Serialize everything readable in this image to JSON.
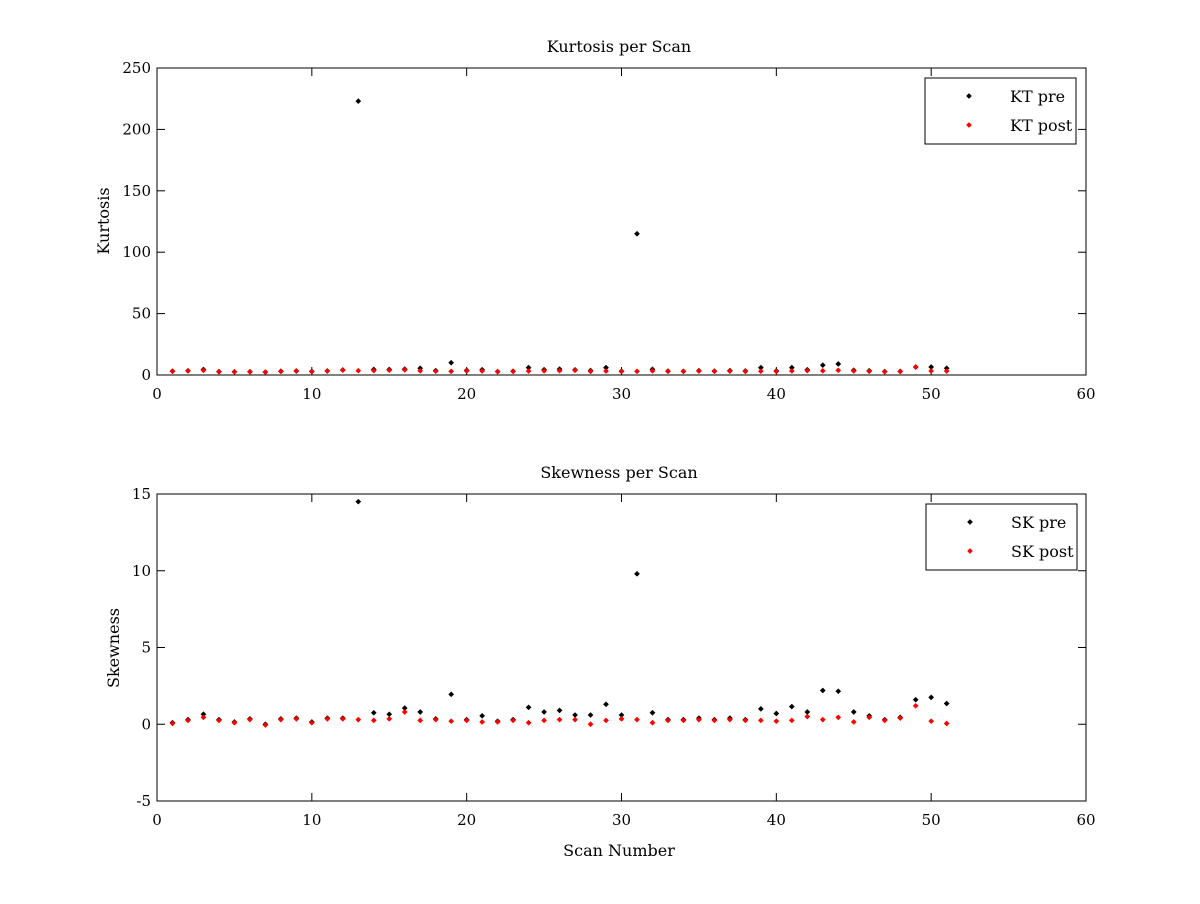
{
  "chart_data": [
    {
      "type": "scatter",
      "title": "Kurtosis per Scan",
      "xlabel": "",
      "ylabel": "Kurtosis",
      "xlim": [
        0,
        60
      ],
      "ylim": [
        0,
        250
      ],
      "xticks": [
        0,
        10,
        20,
        30,
        40,
        50,
        60
      ],
      "yticks": [
        0,
        50,
        100,
        150,
        200,
        250
      ],
      "grid": false,
      "legend_position": "top-right",
      "series": [
        {
          "name": "KT pre",
          "color": "#000000",
          "points": [
            [
              1,
              3.2
            ],
            [
              2,
              3.4
            ],
            [
              3,
              4.5
            ],
            [
              4,
              2.8
            ],
            [
              5,
              2.6
            ],
            [
              6,
              2.7
            ],
            [
              7,
              2.4
            ],
            [
              8,
              3.1
            ],
            [
              9,
              3.3
            ],
            [
              10,
              2.9
            ],
            [
              11,
              3.3
            ],
            [
              12,
              4.1
            ],
            [
              13,
              223
            ],
            [
              14,
              4.5
            ],
            [
              15,
              4.5
            ],
            [
              16,
              4.8
            ],
            [
              17,
              5.5
            ],
            [
              18,
              3.6
            ],
            [
              19,
              10
            ],
            [
              20,
              3.8
            ],
            [
              21,
              4.3
            ],
            [
              22,
              2.8
            ],
            [
              23,
              3.1
            ],
            [
              24,
              6
            ],
            [
              25,
              4.3
            ],
            [
              26,
              4.8
            ],
            [
              27,
              4.2
            ],
            [
              28,
              3.7
            ],
            [
              29,
              6
            ],
            [
              30,
              3.1
            ],
            [
              31,
              115
            ],
            [
              32,
              4.6
            ],
            [
              33,
              3.2
            ],
            [
              34,
              3.0
            ],
            [
              35,
              3.5
            ],
            [
              36,
              3.2
            ],
            [
              37,
              3.6
            ],
            [
              38,
              3.3
            ],
            [
              39,
              6
            ],
            [
              40,
              3.3
            ],
            [
              41,
              6
            ],
            [
              42,
              4.3
            ],
            [
              43,
              8
            ],
            [
              44,
              9
            ],
            [
              45,
              3.9
            ],
            [
              46,
              3.5
            ],
            [
              47,
              2.8
            ],
            [
              48,
              3.0
            ],
            [
              49,
              6.5
            ],
            [
              50,
              6.5
            ],
            [
              51,
              5.5
            ]
          ]
        },
        {
          "name": "KT post",
          "color": "#ff0000",
          "points": [
            [
              1,
              3.0
            ],
            [
              2,
              3.3
            ],
            [
              3,
              3.8
            ],
            [
              4,
              2.6
            ],
            [
              5,
              2.5
            ],
            [
              6,
              2.6
            ],
            [
              7,
              2.3
            ],
            [
              8,
              2.9
            ],
            [
              9,
              3.1
            ],
            [
              10,
              2.7
            ],
            [
              11,
              3.2
            ],
            [
              12,
              3.9
            ],
            [
              13,
              3.5
            ],
            [
              14,
              3.6
            ],
            [
              15,
              3.9
            ],
            [
              16,
              4.2
            ],
            [
              17,
              3.4
            ],
            [
              18,
              3.1
            ],
            [
              19,
              3.0
            ],
            [
              20,
              3.3
            ],
            [
              21,
              3.3
            ],
            [
              22,
              2.7
            ],
            [
              23,
              2.9
            ],
            [
              24,
              3.2
            ],
            [
              25,
              3.4
            ],
            [
              26,
              3.5
            ],
            [
              27,
              3.8
            ],
            [
              28,
              3.0
            ],
            [
              29,
              3.2
            ],
            [
              30,
              2.8
            ],
            [
              31,
              3.0
            ],
            [
              32,
              3.4
            ],
            [
              33,
              3.0
            ],
            [
              34,
              2.9
            ],
            [
              35,
              3.2
            ],
            [
              36,
              3.0
            ],
            [
              37,
              3.2
            ],
            [
              38,
              2.9
            ],
            [
              39,
              3.1
            ],
            [
              40,
              2.9
            ],
            [
              41,
              3.3
            ],
            [
              42,
              3.6
            ],
            [
              43,
              3.4
            ],
            [
              44,
              3.8
            ],
            [
              45,
              3.3
            ],
            [
              46,
              3.0
            ],
            [
              47,
              2.6
            ],
            [
              48,
              2.9
            ],
            [
              49,
              6.5
            ],
            [
              50,
              3.3
            ],
            [
              51,
              3.2
            ]
          ]
        }
      ]
    },
    {
      "type": "scatter",
      "title": "Skewness per Scan",
      "xlabel": "Scan Number",
      "ylabel": "Skewness",
      "xlim": [
        0,
        60
      ],
      "ylim": [
        -5,
        15
      ],
      "xticks": [
        0,
        10,
        20,
        30,
        40,
        50,
        60
      ],
      "yticks": [
        -5,
        0,
        5,
        10,
        15
      ],
      "grid": false,
      "legend_position": "top-right",
      "series": [
        {
          "name": "SK pre",
          "color": "#000000",
          "points": [
            [
              1,
              0.1
            ],
            [
              2,
              0.3
            ],
            [
              3,
              0.65
            ],
            [
              4,
              0.3
            ],
            [
              5,
              0.15
            ],
            [
              6,
              0.35
            ],
            [
              7,
              0.0
            ],
            [
              8,
              0.35
            ],
            [
              9,
              0.4
            ],
            [
              10,
              0.15
            ],
            [
              11,
              0.4
            ],
            [
              12,
              0.4
            ],
            [
              13,
              14.5
            ],
            [
              14,
              0.75
            ],
            [
              15,
              0.65
            ],
            [
              16,
              1.05
            ],
            [
              17,
              0.8
            ],
            [
              18,
              0.35
            ],
            [
              19,
              1.95
            ],
            [
              20,
              0.3
            ],
            [
              21,
              0.55
            ],
            [
              22,
              0.2
            ],
            [
              23,
              0.3
            ],
            [
              24,
              1.1
            ],
            [
              25,
              0.8
            ],
            [
              26,
              0.9
            ],
            [
              27,
              0.6
            ],
            [
              28,
              0.6
            ],
            [
              29,
              1.3
            ],
            [
              30,
              0.6
            ],
            [
              31,
              9.8
            ],
            [
              32,
              0.75
            ],
            [
              33,
              0.3
            ],
            [
              34,
              0.3
            ],
            [
              35,
              0.4
            ],
            [
              36,
              0.3
            ],
            [
              37,
              0.4
            ],
            [
              38,
              0.3
            ],
            [
              39,
              1.0
            ],
            [
              40,
              0.7
            ],
            [
              41,
              1.15
            ],
            [
              42,
              0.8
            ],
            [
              43,
              2.2
            ],
            [
              44,
              2.15
            ],
            [
              45,
              0.8
            ],
            [
              46,
              0.55
            ],
            [
              47,
              0.3
            ],
            [
              48,
              0.45
            ],
            [
              49,
              1.6
            ],
            [
              50,
              1.75
            ],
            [
              51,
              1.35
            ]
          ]
        },
        {
          "name": "SK post",
          "color": "#ff0000",
          "points": [
            [
              1,
              0.05
            ],
            [
              2,
              0.25
            ],
            [
              3,
              0.45
            ],
            [
              4,
              0.25
            ],
            [
              5,
              0.1
            ],
            [
              6,
              0.3
            ],
            [
              7,
              -0.05
            ],
            [
              8,
              0.3
            ],
            [
              9,
              0.35
            ],
            [
              10,
              0.1
            ],
            [
              11,
              0.35
            ],
            [
              12,
              0.35
            ],
            [
              13,
              0.3
            ],
            [
              14,
              0.25
            ],
            [
              15,
              0.35
            ],
            [
              16,
              0.8
            ],
            [
              17,
              0.25
            ],
            [
              18,
              0.3
            ],
            [
              19,
              0.2
            ],
            [
              20,
              0.25
            ],
            [
              21,
              0.15
            ],
            [
              22,
              0.15
            ],
            [
              23,
              0.25
            ],
            [
              24,
              0.1
            ],
            [
              25,
              0.25
            ],
            [
              26,
              0.3
            ],
            [
              27,
              0.3
            ],
            [
              28,
              0.0
            ],
            [
              29,
              0.25
            ],
            [
              30,
              0.35
            ],
            [
              31,
              0.3
            ],
            [
              32,
              0.1
            ],
            [
              33,
              0.25
            ],
            [
              34,
              0.25
            ],
            [
              35,
              0.3
            ],
            [
              36,
              0.25
            ],
            [
              37,
              0.3
            ],
            [
              38,
              0.25
            ],
            [
              39,
              0.25
            ],
            [
              40,
              0.2
            ],
            [
              41,
              0.25
            ],
            [
              42,
              0.5
            ],
            [
              43,
              0.3
            ],
            [
              44,
              0.45
            ],
            [
              45,
              0.15
            ],
            [
              46,
              0.45
            ],
            [
              47,
              0.25
            ],
            [
              48,
              0.4
            ],
            [
              49,
              1.2
            ],
            [
              50,
              0.2
            ],
            [
              51,
              0.05
            ]
          ]
        }
      ]
    }
  ]
}
